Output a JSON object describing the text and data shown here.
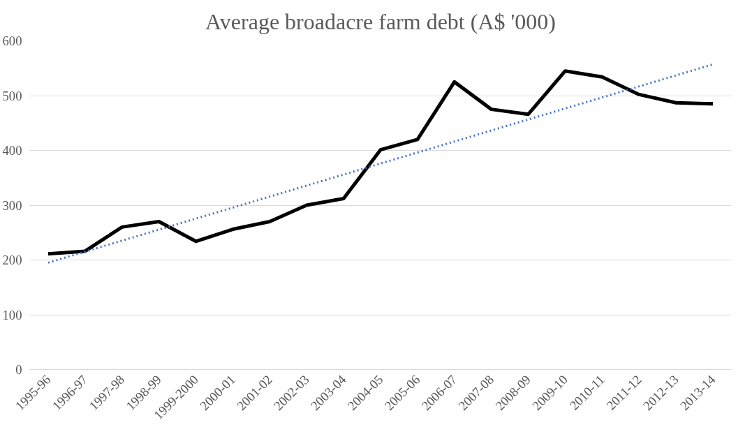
{
  "chart_data": {
    "type": "line",
    "title": "Average broadacre farm debt (A$ '000)",
    "categories": [
      "1995-96",
      "1996-97",
      "1997-98",
      "1998-99",
      "1999-2000",
      "2000-01",
      "2001-02",
      "2002-03",
      "2003-04",
      "2004-05",
      "2005-06",
      "2006-07",
      "2007-08",
      "2008-09",
      "2009-10",
      "2010-11",
      "2011-12",
      "2012-13",
      "2013-14"
    ],
    "series": [
      {
        "color": "#000000",
        "line_style": "solid",
        "values": [
          211,
          216,
          260,
          270,
          234,
          256,
          270,
          300,
          312,
          401,
          420,
          525,
          475,
          466,
          545,
          534,
          502,
          487,
          485
        ]
      },
      {
        "type": "line",
        "color": "#4472c4",
        "line_style": "dotted",
        "x": [
          "1995-96",
          "2013-14"
        ],
        "values": [
          195,
          557
        ]
      }
    ],
    "ylim": [
      0,
      600
    ],
    "yticks": [
      0,
      100,
      200,
      300,
      400,
      500,
      600
    ],
    "grid": "y",
    "marker": "none"
  }
}
